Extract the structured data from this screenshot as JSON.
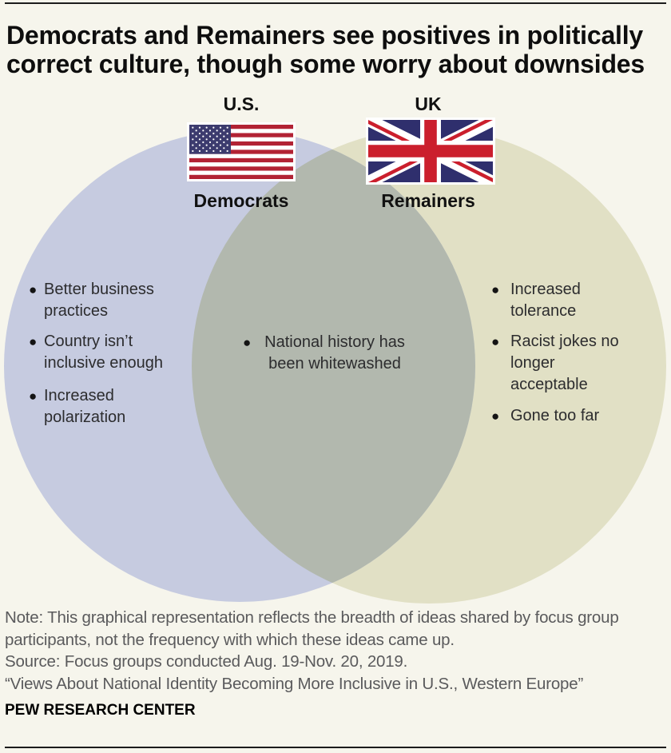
{
  "title": "Democrats and Remainers see positives in politically\ncorrect culture, though some worry about downsides",
  "venn": {
    "left": {
      "country_label": "U.S.",
      "group_label": "Democrats",
      "flag_icon": "us-flag",
      "circle_color": "#c6cbe0",
      "items": [
        "Better business\npractices",
        "Country isn’t\ninclusive enough",
        "Increased\npolarization"
      ]
    },
    "right": {
      "country_label": "UK",
      "group_label": "Remainers",
      "flag_icon": "uk-flag",
      "circle_color": "#e1e0c5",
      "items": [
        "Increased\ntolerance",
        "Racist jokes no\nlonger\nacceptable",
        "Gone too far"
      ]
    },
    "overlap": {
      "circle_color": "#b2b8ae",
      "items": [
        "National history has\nbeen whitewashed"
      ]
    }
  },
  "footer": {
    "note": "Note: This graphical representation reflects the breadth of ideas shared by focus group\nparticipants, not the frequency with which these ideas came up.",
    "source": "Source: Focus groups conducted Aug. 19-Nov. 20, 2019.",
    "quote": "“Views About National Identity Becoming More Inclusive in U.S., Western Europe”",
    "brand": "PEW RESEARCH CENTER"
  }
}
